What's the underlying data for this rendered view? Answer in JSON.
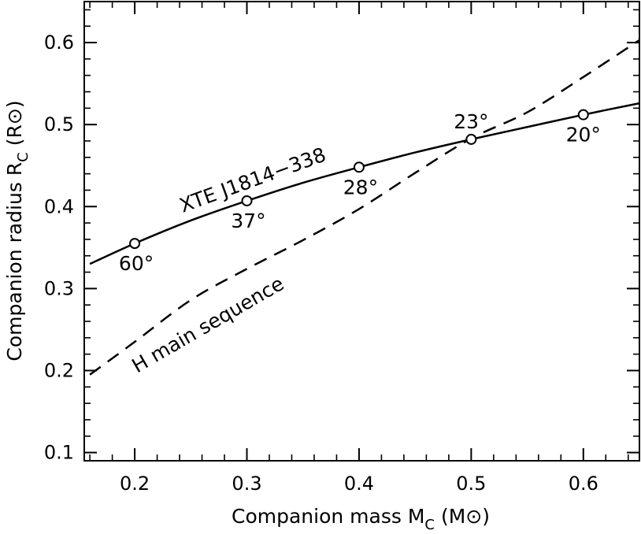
{
  "chart_data": {
    "type": "line",
    "xlabel": "Companion mass M",
    "xlabel_sub": "C",
    "xlabel_unit": "(M⊙)",
    "ylabel": "Companion radius R",
    "ylabel_sub": "C",
    "ylabel_unit": "(R⊙)",
    "xlim": [
      0.155,
      0.65
    ],
    "ylim": [
      0.09,
      0.65
    ],
    "xticks": [
      0.2,
      0.3,
      0.4,
      0.5,
      0.6
    ],
    "xtick_labels": [
      "0.2",
      "0.3",
      "0.4",
      "0.5",
      "0.6"
    ],
    "yticks": [
      0.1,
      0.2,
      0.3,
      0.4,
      0.5,
      0.6
    ],
    "ytick_labels": [
      "0.1",
      "0.2",
      "0.3",
      "0.4",
      "0.5",
      "0.6"
    ],
    "grid": false,
    "series": [
      {
        "name": "XTE J1814−338",
        "style": "solid",
        "x": [
          0.16,
          0.2,
          0.25,
          0.3,
          0.35,
          0.4,
          0.45,
          0.5,
          0.55,
          0.6,
          0.65
        ],
        "y": [
          0.33,
          0.355,
          0.383,
          0.407,
          0.429,
          0.448,
          0.466,
          0.482,
          0.497,
          0.512,
          0.526
        ]
      },
      {
        "name": "H main sequence",
        "style": "dashed",
        "x": [
          0.16,
          0.2,
          0.25,
          0.3,
          0.35,
          0.4,
          0.45,
          0.5,
          0.55,
          0.6,
          0.65
        ],
        "y": [
          0.195,
          0.235,
          0.286,
          0.324,
          0.359,
          0.397,
          0.441,
          0.483,
          0.515,
          0.558,
          0.603
        ]
      }
    ],
    "markers": [
      {
        "x": 0.2,
        "y": 0.355,
        "label": "60°"
      },
      {
        "x": 0.3,
        "y": 0.407,
        "label": "37°"
      },
      {
        "x": 0.4,
        "y": 0.448,
        "label": "28°"
      },
      {
        "x": 0.5,
        "y": 0.482,
        "label": "23°"
      },
      {
        "x": 0.6,
        "y": 0.512,
        "label": "20°"
      }
    ]
  }
}
